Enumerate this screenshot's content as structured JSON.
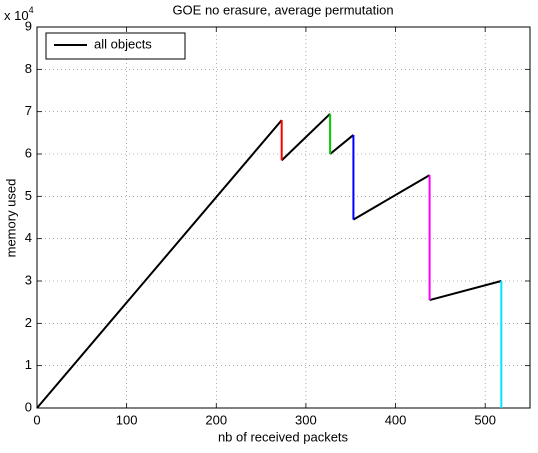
{
  "chart_data": {
    "type": "line",
    "title": "GOE no erasure, average permutation",
    "x_label": "nb of received packets",
    "y_label": "memory used",
    "y_multiplier": {
      "base": "x 10",
      "exponent": "4"
    },
    "xlim": [
      0,
      550
    ],
    "xticks": [
      0,
      100,
      200,
      300,
      400,
      500
    ],
    "ylim": [
      0,
      9
    ],
    "yticks": [
      0,
      1,
      2,
      3,
      4,
      5,
      6,
      7,
      8,
      9
    ],
    "grid": true,
    "legend": "upper left",
    "series": [
      {
        "name": "all objects",
        "color": "#000000",
        "x": [
          0,
          273,
          null,
          273,
          327,
          null,
          327,
          353,
          null,
          353,
          438,
          null,
          438,
          518
        ],
        "values": [
          0,
          6.8,
          null,
          5.85,
          6.95,
          null,
          6.0,
          6.45,
          null,
          4.45,
          5.5,
          null,
          2.55,
          3.0
        ]
      },
      {
        "color": "#ff0000",
        "x": [
          273,
          273
        ],
        "values": [
          6.8,
          5.85
        ]
      },
      {
        "color": "#00cc00",
        "x": [
          327,
          327
        ],
        "values": [
          6.95,
          6.0
        ]
      },
      {
        "color": "#0000ff",
        "x": [
          353,
          353
        ],
        "values": [
          6.45,
          4.45
        ]
      },
      {
        "color": "#ff00ff",
        "x": [
          438,
          438
        ],
        "values": [
          5.5,
          2.55
        ]
      },
      {
        "color": "#00e5ff",
        "x": [
          518,
          518
        ],
        "values": [
          3.0,
          0
        ]
      }
    ]
  }
}
